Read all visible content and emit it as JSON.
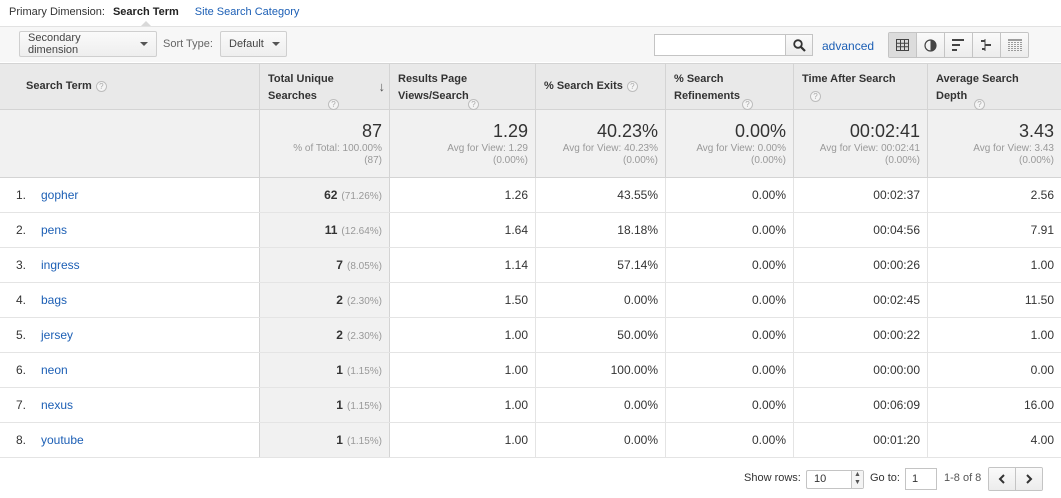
{
  "primary_dimension": {
    "label": "Primary Dimension:",
    "active": "Search Term",
    "other": "Site Search Category"
  },
  "toolbar": {
    "secondary_dimension": "Secondary dimension",
    "sort_type_label": "Sort Type:",
    "sort_type_value": "Default",
    "search_value": "",
    "advanced_label": "advanced",
    "view_icons": [
      "table-view-icon",
      "pie-view-icon",
      "bar-view-icon",
      "comparison-view-icon",
      "pivot-view-icon"
    ]
  },
  "columns": [
    {
      "label": "Search Term",
      "help": "?"
    },
    {
      "label": "Total Unique Searches",
      "help": "?",
      "sorted": "desc"
    },
    {
      "label": "Results Page Views/Search",
      "help": "?"
    },
    {
      "label": "% Search Exits",
      "help": "?"
    },
    {
      "label": "% Search Refinements",
      "help": "?"
    },
    {
      "label": "Time After Search",
      "help": "?"
    },
    {
      "label": "Average Search Depth",
      "help": "?"
    }
  ],
  "totals": [
    {
      "value": "87",
      "line1": "% of Total: 100.00%",
      "line2": "(87)"
    },
    {
      "value": "1.29",
      "line1": "Avg for View: 1.29",
      "line2": "(0.00%)"
    },
    {
      "value": "40.23%",
      "line1": "Avg for View: 40.23%",
      "line2": "(0.00%)"
    },
    {
      "value": "0.00%",
      "line1": "Avg for View: 0.00%",
      "line2": "(0.00%)"
    },
    {
      "value": "00:02:41",
      "line1": "Avg for View: 00:02:41",
      "line2": "(0.00%)"
    },
    {
      "value": "3.43",
      "line1": "Avg for View: 3.43",
      "line2": "(0.00%)"
    }
  ],
  "rows": [
    {
      "num": "1.",
      "term": "gopher",
      "searches": "62",
      "pct": "(71.26%)",
      "rpv": "1.26",
      "exits": "43.55%",
      "refinements": "0.00%",
      "time": "00:02:37",
      "depth": "2.56"
    },
    {
      "num": "2.",
      "term": "pens",
      "searches": "11",
      "pct": "(12.64%)",
      "rpv": "1.64",
      "exits": "18.18%",
      "refinements": "0.00%",
      "time": "00:04:56",
      "depth": "7.91"
    },
    {
      "num": "3.",
      "term": "ingress",
      "searches": "7",
      "pct": "(8.05%)",
      "rpv": "1.14",
      "exits": "57.14%",
      "refinements": "0.00%",
      "time": "00:00:26",
      "depth": "1.00"
    },
    {
      "num": "4.",
      "term": "bags",
      "searches": "2",
      "pct": "(2.30%)",
      "rpv": "1.50",
      "exits": "0.00%",
      "refinements": "0.00%",
      "time": "00:02:45",
      "depth": "11.50"
    },
    {
      "num": "5.",
      "term": "jersey",
      "searches": "2",
      "pct": "(2.30%)",
      "rpv": "1.00",
      "exits": "50.00%",
      "refinements": "0.00%",
      "time": "00:00:22",
      "depth": "1.00"
    },
    {
      "num": "6.",
      "term": "neon",
      "searches": "1",
      "pct": "(1.15%)",
      "rpv": "1.00",
      "exits": "100.00%",
      "refinements": "0.00%",
      "time": "00:00:00",
      "depth": "0.00"
    },
    {
      "num": "7.",
      "term": "nexus",
      "searches": "1",
      "pct": "(1.15%)",
      "rpv": "1.00",
      "exits": "0.00%",
      "refinements": "0.00%",
      "time": "00:06:09",
      "depth": "16.00"
    },
    {
      "num": "8.",
      "term": "youtube",
      "searches": "1",
      "pct": "(1.15%)",
      "rpv": "1.00",
      "exits": "0.00%",
      "refinements": "0.00%",
      "time": "00:01:20",
      "depth": "4.00"
    }
  ],
  "footer": {
    "show_rows_label": "Show rows:",
    "show_rows_value": "10",
    "goto_label": "Go to:",
    "goto_value": "1",
    "range": "1-8 of 8"
  }
}
